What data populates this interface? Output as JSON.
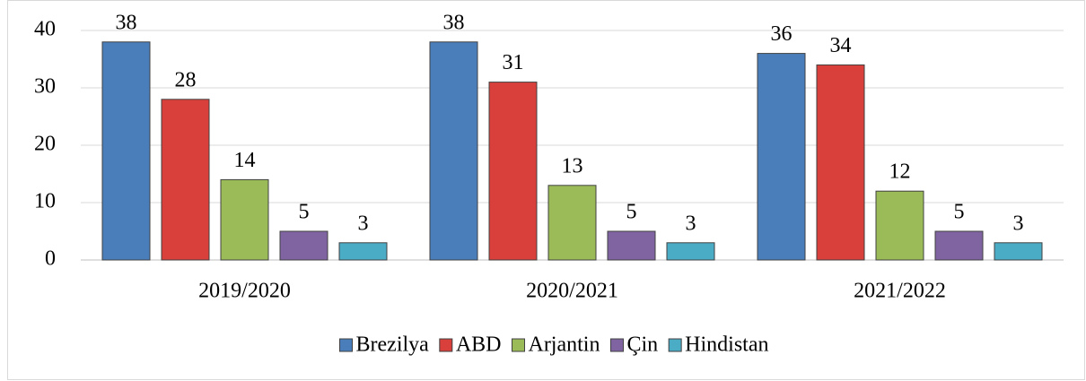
{
  "chart_data": {
    "type": "bar",
    "categories": [
      "2019/2020",
      "2020/2021",
      "2021/2022"
    ],
    "series": [
      {
        "name": "Brezilya",
        "color": "#4a7ebb",
        "values": [
          38,
          38,
          36
        ]
      },
      {
        "name": "ABD",
        "color": "#d9403b",
        "values": [
          28,
          31,
          34
        ]
      },
      {
        "name": "Arjantin",
        "color": "#9bbb59",
        "values": [
          14,
          13,
          12
        ]
      },
      {
        "name": "Çin",
        "color": "#8064a2",
        "values": [
          5,
          5,
          5
        ]
      },
      {
        "name": "Hindistan",
        "color": "#4bacc6",
        "values": [
          3,
          3,
          3
        ]
      }
    ],
    "ylim": [
      0,
      40
    ],
    "yticks": [
      0,
      10,
      20,
      30,
      40
    ],
    "grid": true,
    "legend": "bottom"
  }
}
